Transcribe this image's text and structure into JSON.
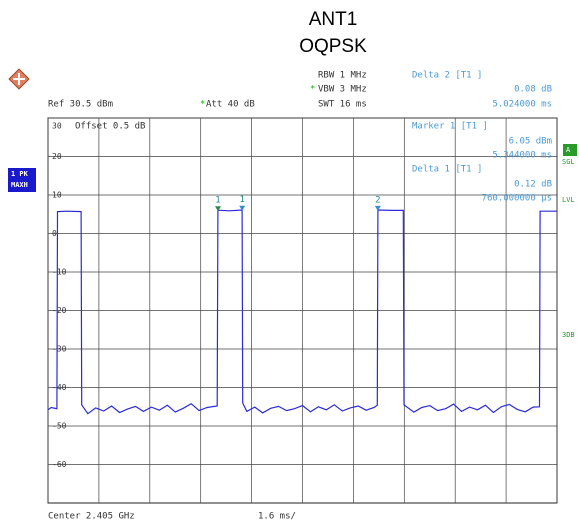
{
  "chart_data": {
    "type": "line",
    "title": "ANT1",
    "subtitle": "OQPSK",
    "settings": {
      "rbw": "RBW 1 MHz",
      "vbw": "VBW 3 MHz",
      "swt": "SWT 16 ms",
      "ref": "Ref  30.5 dBm",
      "att": "Att  40 dB",
      "offset": "Offset  0.5 dB",
      "center": "Center 2.405 GHz",
      "span": "1.6 ms/",
      "trace_mode": [
        "1 PK",
        "MAXH"
      ],
      "side_flags": [
        "A",
        "SGL",
        "LVL",
        "3DB"
      ]
    },
    "readouts": [
      [
        "Delta 2 [T1 ]",
        "0.08 dB",
        "5.024000 ms"
      ],
      [
        "Marker 1 [T1 ]",
        "6.05 dBm",
        "5.344000 ms"
      ],
      [
        "Delta 1 [T1 ]",
        "0.12 dB",
        "760.000000 µs"
      ]
    ],
    "xlim": [
      0,
      16
    ],
    "xticks": [
      0,
      1.6,
      3.2,
      4.8,
      6.4,
      8,
      9.6,
      11.2,
      12.8,
      14.4,
      16
    ],
    "ylim": [
      -70,
      30
    ],
    "yticks": [
      30,
      20,
      10,
      0,
      -10,
      -20,
      -30,
      -40,
      -50,
      -60
    ],
    "grid": true,
    "series": [
      {
        "name": "Trace 1",
        "color": "#2b2bd8",
        "x": [
          0,
          0.1,
          0.28,
          0.3,
          0.6,
          1.04,
          1.06,
          1.25,
          1.5,
          1.75,
          2,
          2.25,
          2.5,
          2.75,
          3,
          3.25,
          3.5,
          3.75,
          4,
          4.25,
          4.5,
          4.75,
          5,
          5.32,
          5.34,
          5.7,
          6.1,
          6.12,
          6.25,
          6.5,
          6.75,
          7,
          7.25,
          7.5,
          7.75,
          8,
          8.25,
          8.5,
          8.75,
          9,
          9.25,
          9.5,
          9.75,
          10,
          10.25,
          10.35,
          10.37,
          10.8,
          11.17,
          11.19,
          11.5,
          11.75,
          12,
          12.25,
          12.5,
          12.75,
          13,
          13.25,
          13.5,
          13.75,
          14,
          14.25,
          14.5,
          14.75,
          15,
          15.25,
          15.45,
          15.47,
          16
        ],
        "values": [
          -45.8,
          -45.2,
          -45.5,
          5.7,
          5.8,
          5.7,
          -44.5,
          -46.8,
          -45.3,
          -46.1,
          -44.8,
          -46.5,
          -45.6,
          -44.9,
          -46.2,
          -45.1,
          -45.9,
          -44.6,
          -46.4,
          -45.4,
          -44.2,
          -46.0,
          -45.2,
          -44.8,
          6.05,
          5.9,
          6.1,
          -44.0,
          -46.2,
          -45.1,
          -46.6,
          -45.4,
          -44.9,
          -46.0,
          -45.5,
          -44.7,
          -46.3,
          -45.0,
          -45.8,
          -44.5,
          -46.1,
          -45.3,
          -44.8,
          -45.9,
          -45.2,
          -44.6,
          6.1,
          6.0,
          6.0,
          -44.5,
          -46.4,
          -45.2,
          -44.7,
          -46.0,
          -45.5,
          -44.3,
          -46.2,
          -45.1,
          -45.8,
          -44.6,
          -46.5,
          -45.0,
          -44.4,
          -45.7,
          -46.3,
          -45.1,
          -45.0,
          5.8,
          5.8
        ]
      }
    ],
    "markers": [
      {
        "label": "1",
        "x": 5.344,
        "y": 6.05
      },
      {
        "label": "1",
        "x": 6.104,
        "y": 6.17
      },
      {
        "label": "2",
        "x": 10.368,
        "y": 6.13
      }
    ]
  }
}
